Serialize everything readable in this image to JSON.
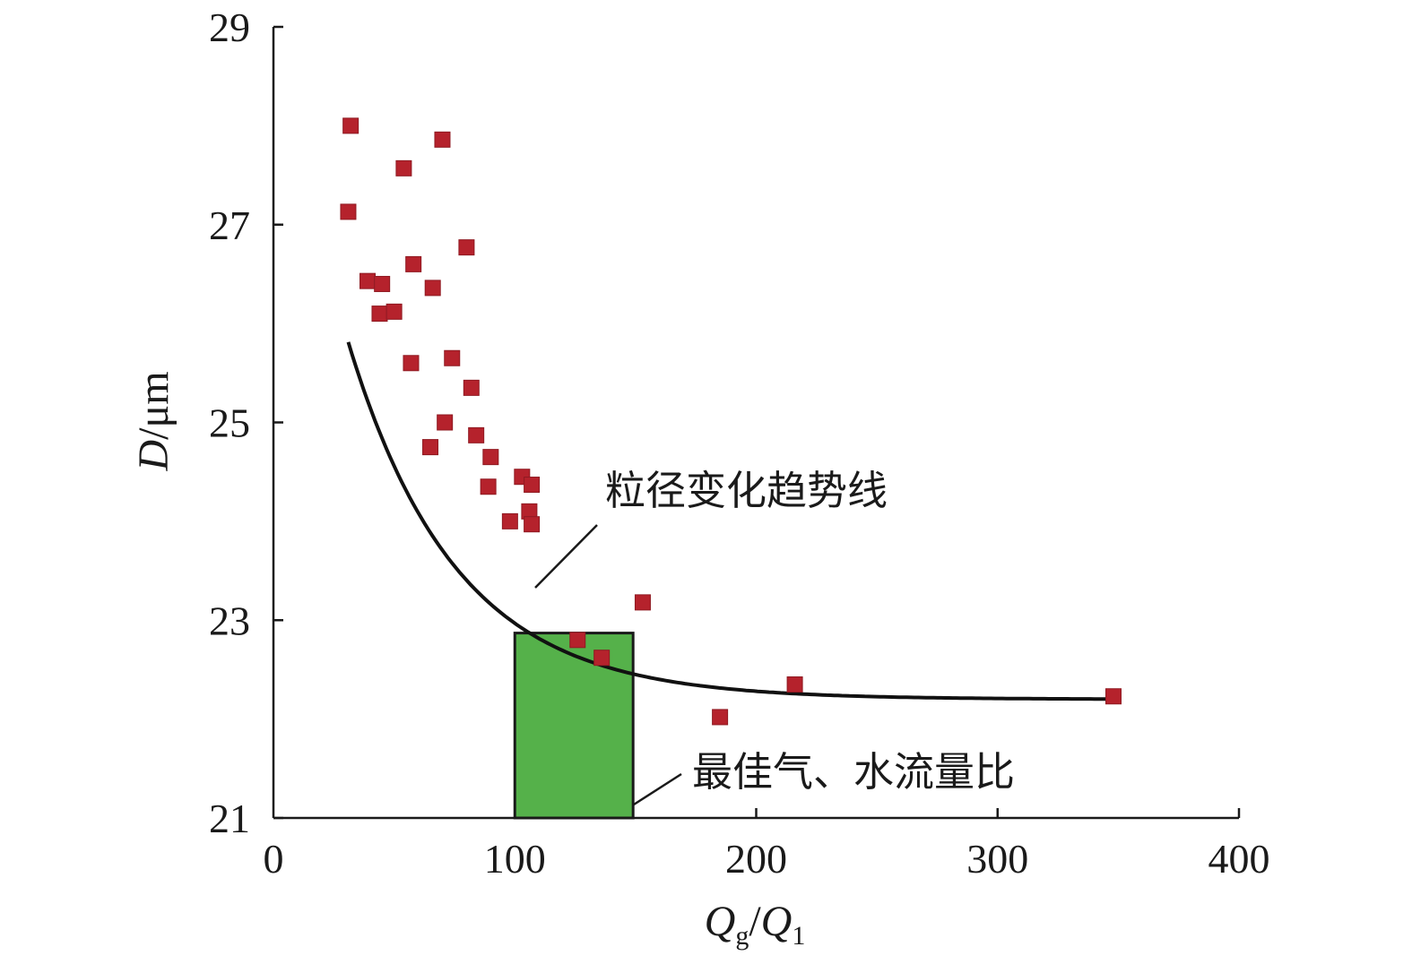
{
  "chart_data": {
    "type": "scatter",
    "xlim": [
      0,
      400
    ],
    "ylim": [
      21,
      29
    ],
    "x_ticks": [
      0,
      100,
      200,
      300,
      400
    ],
    "y_ticks": [
      21,
      23,
      25,
      27,
      29
    ],
    "xlabel": {
      "main1": "Q",
      "sub1": "g",
      "slash": "/",
      "main2": "Q",
      "sub2": "1"
    },
    "ylabel": {
      "var": "D",
      "unit": "/μm"
    },
    "grid": false,
    "colors": {
      "points": "#b5222c",
      "curve": "#111111",
      "region": "#55b14a",
      "region_edge": "#1a1a1a"
    },
    "points": [
      [
        32,
        28.0
      ],
      [
        70,
        27.86
      ],
      [
        54,
        27.57
      ],
      [
        31,
        27.13
      ],
      [
        80,
        26.77
      ],
      [
        58,
        26.6
      ],
      [
        66,
        26.36
      ],
      [
        39,
        26.43
      ],
      [
        45,
        26.4
      ],
      [
        44,
        26.1
      ],
      [
        50,
        26.12
      ],
      [
        57,
        25.6
      ],
      [
        74,
        25.65
      ],
      [
        82,
        25.35
      ],
      [
        71,
        25.0
      ],
      [
        84,
        24.87
      ],
      [
        65,
        24.75
      ],
      [
        90,
        24.65
      ],
      [
        103,
        24.45
      ],
      [
        107,
        24.37
      ],
      [
        89,
        24.35
      ],
      [
        106,
        24.1
      ],
      [
        98,
        24.0
      ],
      [
        107,
        23.97
      ],
      [
        153,
        23.18
      ],
      [
        126,
        22.8
      ],
      [
        136,
        22.62
      ],
      [
        216,
        22.35
      ],
      [
        348,
        22.23
      ],
      [
        185,
        22.02
      ]
    ],
    "trend": {
      "form": "y = a + b·exp(-x/c)",
      "a": 22.2,
      "b": 7.24,
      "c": 44.6,
      "x_range": [
        31,
        348
      ]
    },
    "region": {
      "x": [
        100,
        149
      ],
      "y": [
        21,
        22.87
      ]
    },
    "annotations": {
      "trend_label": "粒径变化趋势线",
      "region_label": "最佳气、水流量比"
    }
  }
}
